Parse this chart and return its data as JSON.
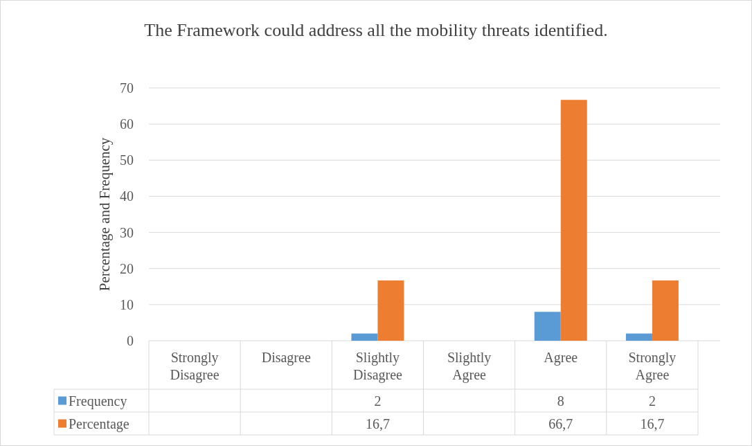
{
  "chart_data": {
    "type": "bar",
    "title": "The Framework could address all the mobility threats identified.",
    "ylabel": "Percentage and Frequency",
    "categories": [
      "Strongly Disagree",
      "Disagree",
      "Slightly Disagree",
      "Slightly Agree",
      "Agree",
      "Strongly Agree"
    ],
    "series": [
      {
        "name": "Frequency",
        "color": "#5b9bd5",
        "values": [
          null,
          null,
          2,
          null,
          8,
          2
        ],
        "value_labels": [
          null,
          null,
          "2",
          null,
          "8",
          "2"
        ]
      },
      {
        "name": "Percentage",
        "color": "#ed7d31",
        "values": [
          null,
          null,
          16.7,
          null,
          66.7,
          16.7
        ],
        "value_labels": [
          null,
          null,
          "16,7",
          null,
          "66,7",
          "16,7"
        ]
      }
    ],
    "ylim": [
      0,
      70
    ],
    "yticks": [
      0,
      10,
      20,
      30,
      40,
      50,
      60,
      70
    ],
    "grid": "y",
    "legend": "bottom"
  }
}
